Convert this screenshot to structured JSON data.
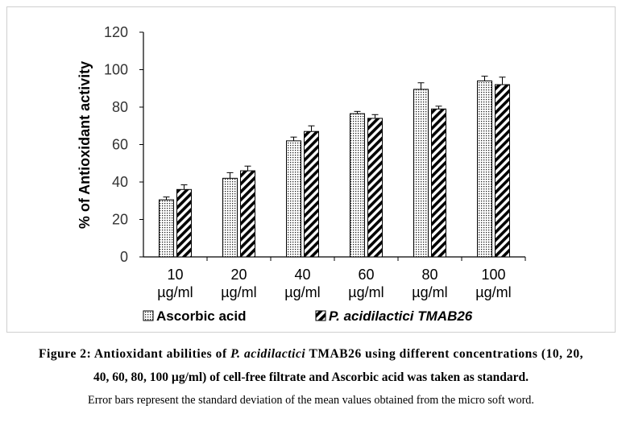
{
  "chart_data": {
    "type": "bar",
    "categories": [
      "10 µg/ml",
      "20 µg/ml",
      "40 µg/ml",
      "60 µg/ml",
      "80 µg/ml",
      "100 µg/ml"
    ],
    "category_lines": [
      [
        "10",
        "µg/ml"
      ],
      [
        "20",
        "µg/ml"
      ],
      [
        "40",
        "µg/ml"
      ],
      [
        "60",
        "µg/ml"
      ],
      [
        "80",
        "µg/ml"
      ],
      [
        "100",
        "µg/ml"
      ]
    ],
    "series": [
      {
        "name": "Ascorbic  acid",
        "values": [
          30.5,
          42,
          62,
          76.5,
          89.5,
          94
        ],
        "errors": [
          1.5,
          3,
          2,
          1.2,
          3.5,
          2.5
        ],
        "pattern": "dots"
      },
      {
        "name": "P. acidilactici TMAB26",
        "values": [
          36,
          46,
          67,
          74,
          79,
          92
        ],
        "errors": [
          2.5,
          2.5,
          3,
          2,
          1.5,
          4
        ],
        "pattern": "diagonal-stripes"
      }
    ],
    "ylabel": "% of Antioxidant activity",
    "xlabel": "",
    "ylim": [
      0,
      120
    ],
    "yticks": [
      0,
      20,
      40,
      60,
      80,
      100,
      120
    ],
    "grid": false,
    "legend_position": "bottom"
  },
  "caption": {
    "figure_label": "Figure 2: Antioxidant abilities of ",
    "organism": "P. acidilactici",
    "rest_line1": " TMAB26 using different concentrations (10, 20,",
    "line2": "40, 60, 80, 100 µg/ml) of cell-free filtrate and Ascorbic acid was taken as standard.",
    "note": "Error bars represent the standard deviation of the mean values obtained from the micro soft word."
  }
}
